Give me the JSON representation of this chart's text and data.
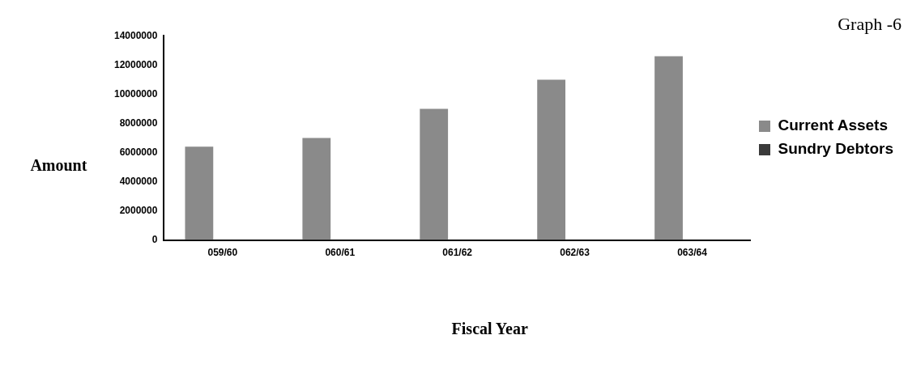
{
  "chart_data": {
    "type": "bar",
    "title": "Graph -6",
    "xlabel": "Fiscal Year",
    "ylabel": "Amount",
    "categories": [
      "059/60",
      "060/61",
      "061/62",
      "062/63",
      "063/64"
    ],
    "series": [
      {
        "name": "Current Assets",
        "color": "#8a8a8a",
        "values": [
          6400000,
          7000000,
          9000000,
          11000000,
          12600000
        ]
      },
      {
        "name": "Sundry Debtors",
        "color": "#3a3a3a",
        "values": [
          0,
          0,
          0,
          0,
          0
        ]
      }
    ],
    "ylim": [
      0,
      14000000
    ],
    "yticks": [
      0,
      2000000,
      4000000,
      6000000,
      8000000,
      10000000,
      12000000,
      14000000
    ],
    "grid": false,
    "legend": "right"
  }
}
